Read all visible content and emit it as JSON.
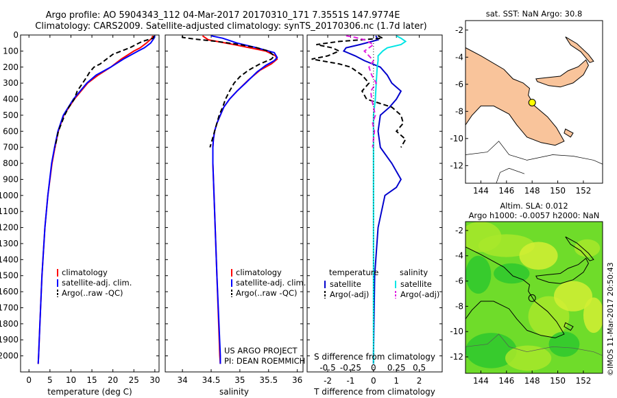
{
  "header": {
    "line1": "Argo profile: AO 5904343_112 04-Mar-2017 20170310_171 7.3551S 147.9774E",
    "line2": "Climatology: CARS2009. Satellite-adjusted climatology: synTS_20170306.nc (1.7d later)"
  },
  "credits": {
    "project": "US ARGO PROJECT",
    "pi": "PI: DEAN ROEMMICH",
    "stamp": "©IMOS 11-Mar-2017 20:50:43"
  },
  "chart_data": [
    {
      "id": "temperature",
      "type": "line",
      "xlabel": "temperature (deg C)",
      "ylabel": "",
      "xlim": [
        -2,
        31
      ],
      "ylim": [
        2100,
        0
      ],
      "xticks": [
        0,
        5,
        10,
        15,
        20,
        25,
        30
      ],
      "yticks": [
        0,
        100,
        200,
        300,
        400,
        500,
        600,
        700,
        800,
        900,
        1000,
        1100,
        1200,
        1300,
        1400,
        1500,
        1600,
        1700,
        1800,
        1900,
        2000
      ],
      "legend": [
        "climatology",
        "satellite-adj. clim.",
        "Argo(..raw -QC)"
      ],
      "series": [
        {
          "name": "climatology",
          "color": "#ff0000",
          "dash": "",
          "depth": [
            5,
            20,
            50,
            80,
            100,
            150,
            200,
            250,
            300,
            400,
            500,
            600,
            700,
            800,
            1000,
            1200,
            1500,
            1800,
            2000,
            2050
          ],
          "values": [
            29.5,
            29.3,
            28.0,
            26.5,
            25.0,
            22.0,
            19.5,
            16.5,
            14.0,
            10.8,
            8.3,
            7.0,
            6.2,
            5.5,
            4.5,
            3.8,
            3.1,
            2.6,
            2.3,
            2.2
          ]
        },
        {
          "name": "satellite-adj. clim.",
          "color": "#0000ff",
          "dash": "",
          "depth": [
            5,
            20,
            50,
            80,
            100,
            150,
            200,
            250,
            300,
            400,
            500,
            600,
            700,
            800,
            1000,
            1200,
            1500,
            1800,
            2000,
            2050
          ],
          "values": [
            30.0,
            29.8,
            29.0,
            27.5,
            26.0,
            22.5,
            19.5,
            16.0,
            13.8,
            10.6,
            8.2,
            6.9,
            6.1,
            5.4,
            4.5,
            3.8,
            3.1,
            2.6,
            2.3,
            2.2
          ]
        },
        {
          "name": "Argo(..raw -QC)",
          "color": "#000000",
          "dash": "7,4",
          "depth": [
            5,
            20,
            40,
            60,
            80,
            100,
            120,
            150,
            180,
            200,
            230,
            260,
            300,
            350,
            400,
            450,
            500,
            600,
            700
          ],
          "values": [
            29.8,
            29.6,
            27.0,
            25.5,
            24.0,
            22.0,
            20.0,
            18.5,
            17.0,
            15.5,
            14.5,
            13.8,
            12.8,
            11.5,
            10.8,
            9.5,
            8.5,
            7.0,
            6.2
          ]
        }
      ]
    },
    {
      "id": "salinity",
      "type": "line",
      "xlabel": "salinity",
      "ylabel": "",
      "xlim": [
        33.7,
        36.1
      ],
      "ylim": [
        2100,
        0
      ],
      "xticks": [
        34,
        34.5,
        35,
        35.5,
        36
      ],
      "legend": [
        "climatology",
        "satellite-adj. clim.",
        "Argo(..raw -QC)"
      ],
      "series": [
        {
          "name": "climatology",
          "color": "#ff0000",
          "dash": "",
          "depth": [
            5,
            30,
            60,
            100,
            130,
            150,
            180,
            220,
            280,
            350,
            400,
            450,
            500,
            550,
            600,
            650,
            700,
            800,
            1000,
            1500,
            2000,
            2050
          ],
          "values": [
            34.35,
            34.45,
            34.9,
            35.45,
            35.62,
            35.65,
            35.55,
            35.35,
            35.15,
            34.95,
            34.82,
            34.72,
            34.66,
            34.6,
            34.56,
            34.54,
            34.53,
            34.53,
            34.55,
            34.6,
            34.65,
            34.66
          ]
        },
        {
          "name": "satellite-adj. clim.",
          "color": "#0000ff",
          "dash": "",
          "depth": [
            5,
            20,
            50,
            80,
            110,
            140,
            160,
            190,
            230,
            300,
            350,
            400,
            450,
            500,
            550,
            600,
            650,
            700,
            800,
            1000,
            1500,
            2000,
            2050
          ],
          "values": [
            34.5,
            34.7,
            34.95,
            35.3,
            35.6,
            35.65,
            35.6,
            35.45,
            35.3,
            35.1,
            34.95,
            34.82,
            34.72,
            34.66,
            34.6,
            34.56,
            34.54,
            34.53,
            34.53,
            34.55,
            34.6,
            34.66,
            34.66
          ]
        },
        {
          "name": "Argo(..raw -QC)",
          "color": "#000000",
          "dash": "7,4",
          "depth": [
            5,
            15,
            25,
            40,
            60,
            80,
            100,
            130,
            150,
            180,
            220,
            260,
            300,
            350,
            400,
            450,
            500,
            550,
            600,
            650,
            700
          ],
          "values": [
            34.0,
            34.0,
            34.2,
            34.6,
            35.0,
            35.3,
            35.5,
            35.6,
            35.55,
            35.35,
            35.15,
            35.0,
            34.9,
            34.82,
            34.75,
            34.7,
            34.64,
            34.6,
            34.56,
            34.52,
            34.48
          ]
        }
      ]
    },
    {
      "id": "differences",
      "type": "line",
      "xlabel": "T difference from climatology",
      "xlabel2": "S difference from climatology",
      "xlim": [
        -2.9,
        3.0
      ],
      "xticks": [
        -2,
        -1,
        0,
        1,
        2
      ],
      "xticks2": [
        -0.5,
        -0.25,
        0,
        0.25,
        0.5
      ],
      "ylim": [
        2100,
        0
      ],
      "legend_groups": [
        "temperature",
        "salinity"
      ],
      "legend": [
        "satellite",
        "Argo(-adj)",
        "satellite",
        "Argo(-adj)"
      ],
      "series": [
        {
          "name": "temperature satellite",
          "color": "#0000cc",
          "dash": "",
          "depth": [
            5,
            30,
            60,
            80,
            100,
            130,
            160,
            200,
            250,
            300,
            350,
            400,
            450,
            500,
            600,
            700,
            800,
            900,
            950,
            1000,
            1200,
            1500,
            2000,
            2050
          ],
          "values": [
            0.1,
            0.2,
            -0.6,
            -1.2,
            -1.3,
            -0.8,
            -0.4,
            0.3,
            0.6,
            0.8,
            1.2,
            1.0,
            0.7,
            0.3,
            0.2,
            0.3,
            0.8,
            1.2,
            1.0,
            0.5,
            0.2,
            0.05,
            0.0,
            0.0
          ]
        },
        {
          "name": "temperature Argo(-adj)",
          "color": "#000000",
          "dash": "7,4",
          "depth": [
            5,
            20,
            40,
            60,
            80,
            100,
            130,
            150,
            180,
            200,
            250,
            300,
            350,
            400,
            450,
            500,
            550,
            600,
            650,
            700
          ],
          "values": [
            0.2,
            0.4,
            -1.5,
            -2.5,
            -1.8,
            -1.5,
            -2.0,
            -2.7,
            -1.5,
            -1.0,
            -0.5,
            -0.2,
            -0.5,
            -0.3,
            0.8,
            1.2,
            1.3,
            1.0,
            1.4,
            1.2
          ]
        },
        {
          "name": "salinity satellite",
          "color": "#00e5e5",
          "dash": "",
          "depth": [
            5,
            20,
            40,
            60,
            80,
            100,
            130,
            160,
            200,
            300,
            400,
            500,
            700,
            1000,
            1500,
            2050
          ],
          "values": [
            0.25,
            0.3,
            0.35,
            0.3,
            0.15,
            0.1,
            0.05,
            0.05,
            0.04,
            0.03,
            0.02,
            0.0,
            0.0,
            0.0,
            0.0,
            0.0
          ]
        },
        {
          "name": "salinity Argo(-adj)",
          "color": "#e020e0",
          "dash": "7,4",
          "depth": [
            5,
            15,
            30,
            60,
            80,
            100,
            130,
            160,
            200,
            250,
            300,
            350,
            400,
            450,
            500,
            550,
            600,
            650,
            700
          ],
          "values": [
            -0.3,
            -0.2,
            -0.1,
            0.0,
            -0.05,
            -0.1,
            -0.05,
            0.0,
            -0.05,
            -0.02,
            0.03,
            -0.03,
            -0.02,
            0.0,
            0.02,
            -0.01,
            0.01,
            0.0,
            -0.01
          ]
        }
      ]
    },
    {
      "id": "sst-map",
      "type": "map",
      "title": "sat. SST: NaN Argo: 30.8",
      "xlim": [
        142.8,
        153.5
      ],
      "ylim": [
        -13.3,
        -1.3
      ],
      "xticks": [
        144,
        146,
        148,
        150,
        152
      ],
      "yticks": [
        -2,
        -4,
        -6,
        -8,
        -10,
        -12
      ],
      "marker": {
        "lon": 148.0,
        "lat": -7.35,
        "color": "#ffff00"
      },
      "land_color": "#f9c49b"
    },
    {
      "id": "sla-map",
      "type": "map",
      "title": "Altim. SLA: 0.012",
      "title2": "Argo h1000: -0.0057 h2000: NaN",
      "xlim": [
        142.8,
        153.5
      ],
      "ylim": [
        -13.3,
        -1.3
      ],
      "xticks": [
        144,
        146,
        148,
        150,
        152
      ],
      "yticks": [
        -2,
        -4,
        -6,
        -8,
        -10,
        -12
      ],
      "marker": {
        "lon": 148.0,
        "lat": -7.35,
        "color": "none"
      },
      "field_colors": [
        "#2ec82e",
        "#6fdc2a",
        "#a8e82a",
        "#d4ee34"
      ]
    }
  ]
}
